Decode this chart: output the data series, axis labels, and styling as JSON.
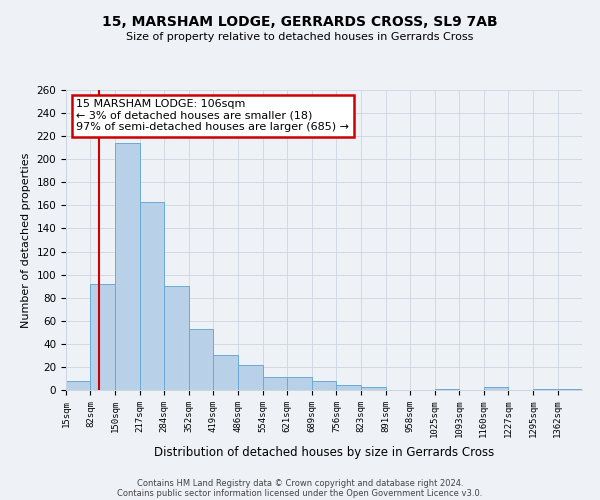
{
  "title": "15, MARSHAM LODGE, GERRARDS CROSS, SL9 7AB",
  "subtitle": "Size of property relative to detached houses in Gerrards Cross",
  "xlabel": "Distribution of detached houses by size in Gerrards Cross",
  "ylabel": "Number of detached properties",
  "bin_labels": [
    "15sqm",
    "82sqm",
    "150sqm",
    "217sqm",
    "284sqm",
    "352sqm",
    "419sqm",
    "486sqm",
    "554sqm",
    "621sqm",
    "689sqm",
    "756sqm",
    "823sqm",
    "891sqm",
    "958sqm",
    "1025sqm",
    "1093sqm",
    "1160sqm",
    "1227sqm",
    "1295sqm",
    "1362sqm"
  ],
  "bar_heights": [
    8,
    92,
    214,
    163,
    90,
    53,
    30,
    22,
    11,
    11,
    8,
    4,
    3,
    0,
    0,
    1,
    0,
    3,
    0,
    1,
    1
  ],
  "bar_color": "#b8d0e8",
  "bar_edge_color": "#6aaad4",
  "property_line_x": 106,
  "bin_edges": [
    15,
    82,
    150,
    217,
    284,
    352,
    419,
    486,
    554,
    621,
    689,
    756,
    823,
    891,
    958,
    1025,
    1093,
    1160,
    1227,
    1295,
    1362,
    1429
  ],
  "annotation_line1": "15 MARSHAM LODGE: 106sqm",
  "annotation_line2": "← 3% of detached houses are smaller (18)",
  "annotation_line3": "97% of semi-detached houses are larger (685) →",
  "annotation_box_color": "#ffffff",
  "annotation_box_edge_color": "#cc0000",
  "ymax": 260,
  "yticks": [
    0,
    20,
    40,
    60,
    80,
    100,
    120,
    140,
    160,
    180,
    200,
    220,
    240,
    260
  ],
  "vline_color": "#cc0000",
  "footer_line1": "Contains HM Land Registry data © Crown copyright and database right 2024.",
  "footer_line2": "Contains public sector information licensed under the Open Government Licence v3.0.",
  "bg_color": "#eef2f7",
  "grid_color": "#cdd5e0"
}
